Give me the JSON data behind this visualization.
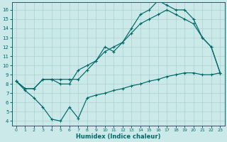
{
  "background_color": "#cce9e9",
  "grid_color": "#aad0d0",
  "line_color": "#006868",
  "xlabel": "Humidex (Indice chaleur)",
  "xlim": [
    -0.5,
    23.5
  ],
  "ylim": [
    3.5,
    16.8
  ],
  "xticks": [
    0,
    1,
    2,
    3,
    4,
    5,
    6,
    7,
    8,
    9,
    10,
    11,
    12,
    13,
    14,
    15,
    16,
    17,
    18,
    19,
    20,
    21,
    22,
    23
  ],
  "yticks": [
    4,
    5,
    6,
    7,
    8,
    9,
    10,
    11,
    12,
    13,
    14,
    15,
    16
  ],
  "line1_x": [
    0,
    1,
    2,
    3,
    4,
    5,
    6,
    7,
    8,
    9,
    10,
    11,
    12,
    13,
    14,
    15,
    16,
    17,
    18,
    19,
    20,
    21,
    22,
    23
  ],
  "line1_y": [
    8.3,
    7.5,
    7.5,
    8.5,
    8.5,
    8.5,
    8.5,
    8.5,
    9.5,
    10.5,
    12.0,
    11.5,
    12.5,
    14.0,
    15.5,
    16.0,
    17.0,
    16.5,
    16.0,
    16.0,
    15.0,
    13.0,
    12.0,
    9.2
  ],
  "line2_x": [
    0,
    1,
    2,
    3,
    4,
    5,
    6,
    7,
    8,
    9,
    10,
    11,
    12,
    13,
    14,
    15,
    16,
    17,
    18,
    19,
    20,
    21,
    22,
    23
  ],
  "line2_y": [
    8.3,
    7.5,
    7.5,
    8.5,
    8.5,
    8.0,
    8.0,
    9.5,
    10.0,
    10.5,
    11.5,
    12.0,
    12.5,
    13.5,
    14.5,
    15.0,
    15.5,
    16.0,
    15.5,
    15.0,
    14.5,
    13.0,
    12.0,
    9.2
  ],
  "line3_x": [
    0,
    1,
    2,
    3,
    4,
    5,
    6,
    7,
    8,
    9,
    10,
    11,
    12,
    13,
    14,
    15,
    16,
    17,
    18,
    19,
    20,
    21,
    22,
    23
  ],
  "line3_y": [
    8.3,
    7.3,
    6.5,
    5.5,
    4.2,
    4.0,
    5.5,
    4.3,
    6.5,
    6.8,
    7.0,
    7.3,
    7.5,
    7.8,
    8.0,
    8.3,
    8.5,
    8.8,
    9.0,
    9.2,
    9.2,
    9.0,
    9.0,
    9.2
  ]
}
